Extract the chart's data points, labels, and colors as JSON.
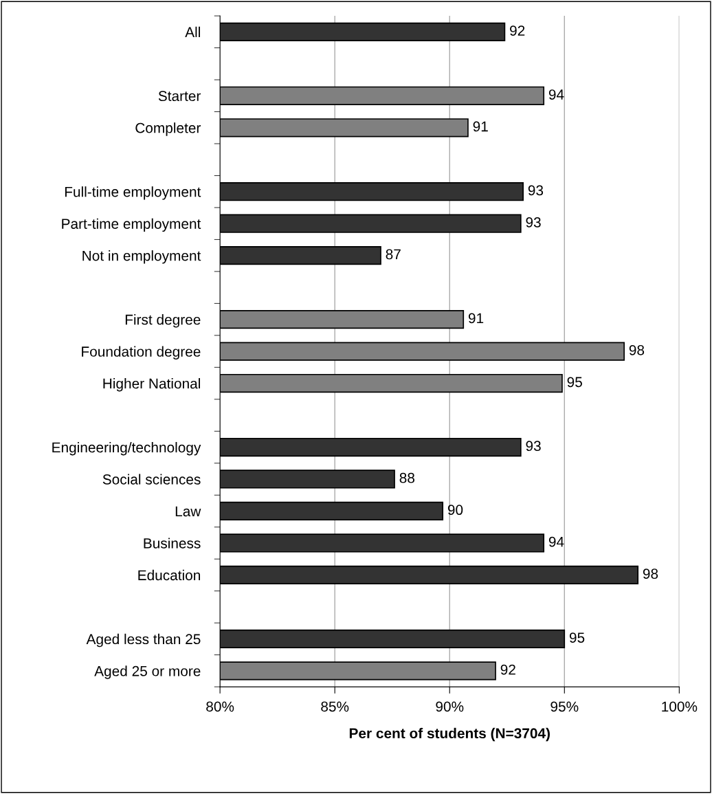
{
  "chart_data": {
    "type": "bar",
    "orientation": "horizontal",
    "xlabel": "Per cent of students (N=3704)",
    "categories": [
      "All",
      null,
      "Starter",
      "Completer",
      null,
      "Full-time employment",
      "Part-time employment",
      "Not in employment",
      null,
      "First degree",
      "Foundation degree",
      "Higher National",
      null,
      "Engineering/technology",
      "Social sciences",
      "Law",
      "Business",
      "Education",
      null,
      "Aged less than 25",
      "Aged 25 or more"
    ],
    "values": [
      92.4,
      null,
      94.1,
      90.8,
      null,
      93.2,
      93.1,
      87.0,
      null,
      90.6,
      97.6,
      94.9,
      null,
      93.1,
      87.6,
      89.7,
      94.1,
      98.2,
      null,
      95.0,
      92.0
    ],
    "value_labels": [
      "92",
      null,
      "94",
      "91",
      null,
      "93",
      "93",
      "87",
      null,
      "91",
      "98",
      "95",
      null,
      "93",
      "88",
      "90",
      "94",
      "98",
      null,
      "95",
      "92"
    ],
    "colors": [
      "#333333",
      null,
      "#808080",
      "#808080",
      null,
      "#333333",
      "#333333",
      "#333333",
      null,
      "#808080",
      "#808080",
      "#808080",
      null,
      "#333333",
      "#333333",
      "#333333",
      "#333333",
      "#333333",
      null,
      "#333333",
      "#808080"
    ],
    "xlim": [
      80,
      100
    ],
    "xticks": [
      {
        "value": 80,
        "label": "80%"
      },
      {
        "value": 85,
        "label": "85%"
      },
      {
        "value": 90,
        "label": "90%"
      },
      {
        "value": 95,
        "label": "95%"
      },
      {
        "value": 100,
        "label": "100%"
      }
    ],
    "grid": "x",
    "legend": false
  }
}
